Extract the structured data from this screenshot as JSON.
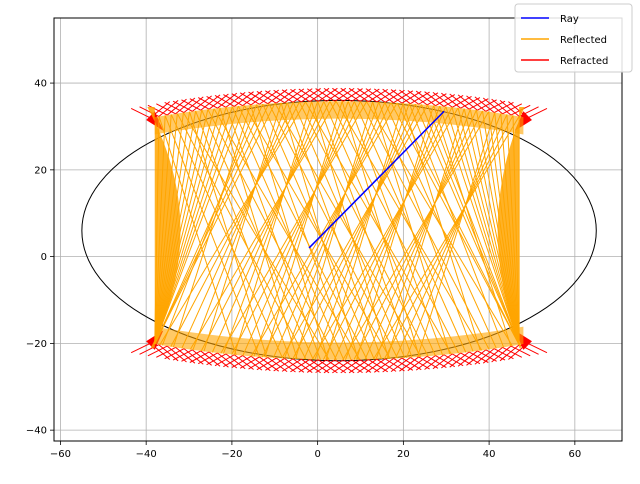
{
  "chart_data": {
    "type": "line",
    "title": "",
    "xlabel": "",
    "ylabel": "",
    "xlim": [
      -61.5,
      71
    ],
    "ylim": [
      -42.5,
      55
    ],
    "xticks": [
      -60,
      -40,
      -20,
      0,
      20,
      40,
      60
    ],
    "yticks": [
      -40,
      -20,
      0,
      20,
      40
    ],
    "xtick_labels": [
      "−60",
      "−40",
      "−20",
      "0",
      "20",
      "40",
      "60"
    ],
    "ytick_labels": [
      "−40",
      "−20",
      "0",
      "20",
      "40"
    ],
    "grid": true,
    "legend_position": "top-right",
    "boundary_ellipse": {
      "center": [
        5,
        6
      ],
      "semi_x": 60,
      "semi_y": 30,
      "color": "#000000"
    },
    "series": [
      {
        "name": "Ray",
        "color": "#0000ff",
        "points": [
          [
            -2,
            2
          ],
          [
            29.5,
            33.5
          ]
        ]
      },
      {
        "name": "Reflected",
        "color": "#ffa500",
        "description_region": {
          "x": [
            -40,
            50
          ],
          "y": [
            -21,
            35
          ]
        }
      },
      {
        "name": "Refracted",
        "color": "#ff0000",
        "description_region": {
          "x": [
            -40,
            50
          ],
          "y": [
            -27,
            39.5
          ]
        }
      }
    ]
  }
}
